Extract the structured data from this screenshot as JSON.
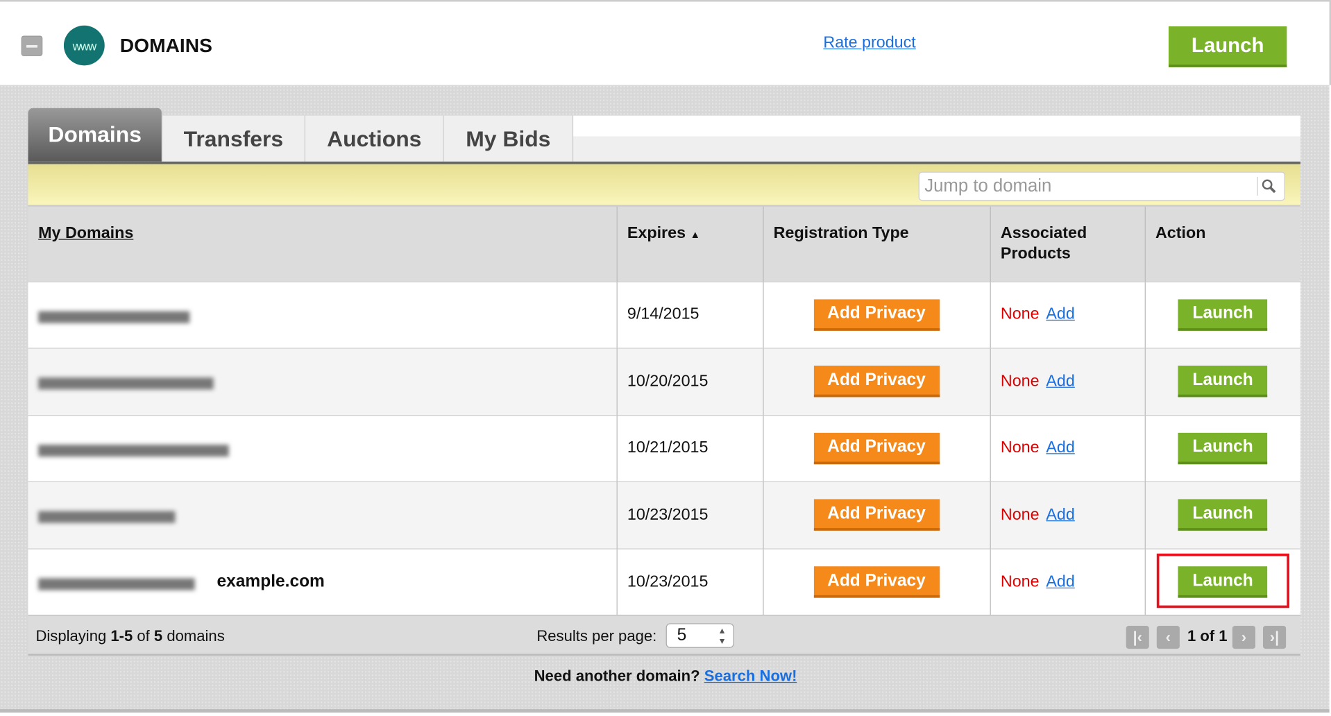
{
  "header": {
    "title": "DOMAINS",
    "logo_text": "www",
    "rate_link": "Rate product",
    "launch": "Launch"
  },
  "tabs": [
    {
      "label": "Domains",
      "active": true
    },
    {
      "label": "Transfers"
    },
    {
      "label": "Auctions"
    },
    {
      "label": "My Bids"
    }
  ],
  "search": {
    "placeholder": "Jump to domain"
  },
  "table": {
    "columns": [
      "My Domains",
      "Expires",
      "Registration Type",
      "Associated Products",
      "Action"
    ],
    "rows": [
      {
        "domain_extra": "",
        "expires": "9/14/2015",
        "registration": "Add Privacy",
        "products": "None",
        "add": "Add",
        "action": "Launch"
      },
      {
        "domain_extra": "",
        "expires": "10/20/2015",
        "registration": "Add Privacy",
        "products": "None",
        "add": "Add",
        "action": "Launch"
      },
      {
        "domain_extra": "",
        "expires": "10/21/2015",
        "registration": "Add Privacy",
        "products": "None",
        "add": "Add",
        "action": "Launch"
      },
      {
        "domain_extra": "",
        "expires": "10/23/2015",
        "registration": "Add Privacy",
        "products": "None",
        "add": "Add",
        "action": "Launch"
      },
      {
        "domain_extra": "example.com",
        "expires": "10/23/2015",
        "registration": "Add Privacy",
        "products": "None",
        "add": "Add",
        "action": "Launch"
      }
    ]
  },
  "footer": {
    "displaying_prefix": "Displaying ",
    "range": "1-5",
    "of": " of ",
    "total": "5",
    "suffix": " domains",
    "results_label": "Results per page:",
    "per_page": "5",
    "page_info": "1 of 1"
  },
  "bottom": {
    "question": "Need another domain?",
    "link": "Search Now!"
  },
  "colors": {
    "launch_green": "#7ab32a",
    "privacy_orange": "#f5891a",
    "none_red": "#dd0000",
    "highlight": "#e8101c"
  }
}
